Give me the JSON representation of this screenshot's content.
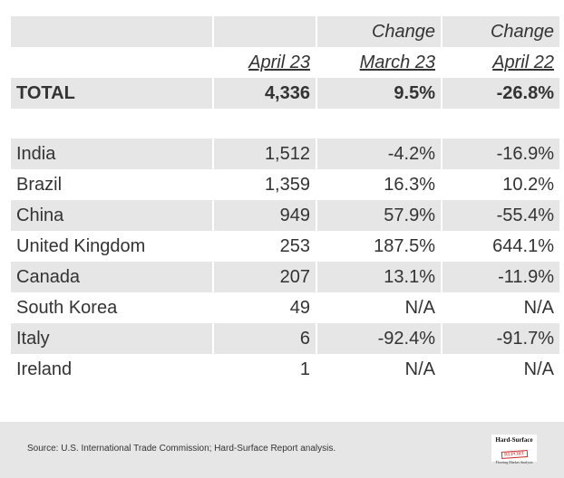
{
  "header": {
    "change_label_1": "Change",
    "change_label_2": "Change",
    "col_current": "April 23",
    "col_prev_month": "March 23",
    "col_prev_year": "April 22"
  },
  "total": {
    "label": "TOTAL",
    "value": "4,336",
    "change_month": "9.5%",
    "change_year": "-26.8%"
  },
  "rows": [
    {
      "country": "India",
      "value": "1,512",
      "change_month": "-4.2%",
      "change_year": "-16.9%"
    },
    {
      "country": "Brazil",
      "value": "1,359",
      "change_month": "16.3%",
      "change_year": "10.2%"
    },
    {
      "country": "China",
      "value": "949",
      "change_month": "57.9%",
      "change_year": "-55.4%"
    },
    {
      "country": "United Kingdom",
      "value": "253",
      "change_month": "187.5%",
      "change_year": "644.1%"
    },
    {
      "country": "Canada",
      "value": "207",
      "change_month": "13.1%",
      "change_year": "-11.9%"
    },
    {
      "country": "South Korea",
      "value": "49",
      "change_month": "N/A",
      "change_year": "N/A"
    },
    {
      "country": "Italy",
      "value": "6",
      "change_month": "-92.4%",
      "change_year": "-91.7%"
    },
    {
      "country": "Ireland",
      "value": "1",
      "change_month": "N/A",
      "change_year": "N/A"
    }
  ],
  "footer": {
    "source": "Source: U.S. International Trade Commission; Hard-Surface Report analysis.",
    "logo_title": "Hard-Surface",
    "logo_badge": "REPORT",
    "logo_sub": "Flooring Market Analysis"
  }
}
